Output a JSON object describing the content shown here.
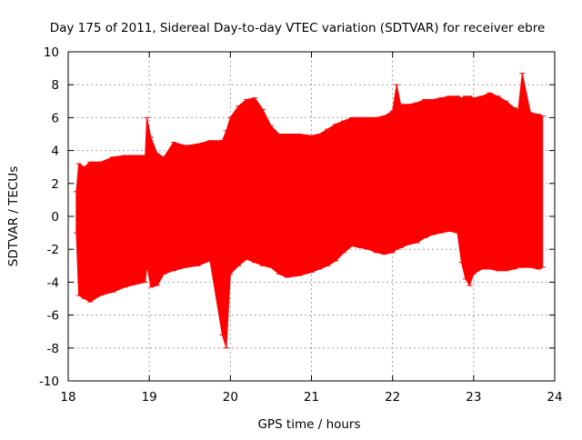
{
  "chart_data": {
    "type": "area",
    "title": "Day 175 of 2011, Sidereal Day-to-day VTEC variation (SDTVAR) for receiver ebre",
    "xlabel": "GPS time / hours",
    "ylabel": "SDTVAR / TECUs",
    "xlim": [
      18,
      24
    ],
    "ylim": [
      -10,
      10
    ],
    "xticks": [
      18,
      19,
      20,
      21,
      22,
      23,
      24
    ],
    "yticks": [
      -10,
      -8,
      -6,
      -4,
      -2,
      0,
      2,
      4,
      6,
      8,
      10
    ],
    "grid": true,
    "legend": "none",
    "series": [
      {
        "color": "#ff0000",
        "x": [
          18.1,
          18.13,
          18.2,
          18.27,
          18.4,
          18.55,
          18.7,
          18.95,
          18.97,
          19.02,
          19.1,
          19.18,
          19.3,
          19.45,
          19.6,
          19.75,
          19.9,
          19.95,
          20.0,
          20.1,
          20.2,
          20.3,
          20.4,
          20.5,
          20.6,
          20.7,
          20.85,
          21.0,
          21.1,
          21.2,
          21.3,
          21.4,
          21.5,
          21.6,
          21.7,
          21.8,
          21.9,
          22.0,
          22.05,
          22.1,
          22.2,
          22.3,
          22.4,
          22.5,
          22.6,
          22.7,
          22.8,
          22.85,
          22.9,
          22.95,
          23.0,
          23.1,
          23.2,
          23.3,
          23.4,
          23.5,
          23.55,
          23.6,
          23.7,
          23.8,
          23.85
        ],
        "upper": [
          1.5,
          3.2,
          3.0,
          3.3,
          3.3,
          3.6,
          3.7,
          3.7,
          6.0,
          4.8,
          3.8,
          3.6,
          4.5,
          4.3,
          4.4,
          4.6,
          4.6,
          5.2,
          6.0,
          6.7,
          7.1,
          7.2,
          6.5,
          5.5,
          5.0,
          5.0,
          5.0,
          4.9,
          5.0,
          5.3,
          5.6,
          5.8,
          6.0,
          6.0,
          6.0,
          6.0,
          6.1,
          6.4,
          8.0,
          6.8,
          6.8,
          6.9,
          7.1,
          7.1,
          7.2,
          7.3,
          7.3,
          7.2,
          7.3,
          7.3,
          7.2,
          7.3,
          7.5,
          7.3,
          7.0,
          6.6,
          6.5,
          8.7,
          6.3,
          6.2,
          6.1
        ],
        "lower": [
          -1.0,
          -4.8,
          -5.0,
          -5.2,
          -4.8,
          -4.6,
          -4.3,
          -4.0,
          -3.0,
          -4.3,
          -4.2,
          -3.5,
          -3.3,
          -3.1,
          -3.0,
          -2.7,
          -7.2,
          -8.0,
          -3.5,
          -3.0,
          -2.6,
          -2.8,
          -3.0,
          -3.1,
          -3.5,
          -3.7,
          -3.6,
          -3.4,
          -3.2,
          -3.0,
          -2.7,
          -2.2,
          -1.8,
          -1.9,
          -2.0,
          -2.2,
          -2.3,
          -2.2,
          -2.0,
          -1.9,
          -1.7,
          -1.6,
          -1.3,
          -1.1,
          -1.0,
          -0.9,
          -1.0,
          -2.8,
          -3.8,
          -4.2,
          -3.5,
          -3.2,
          -3.2,
          -3.3,
          -3.3,
          -3.2,
          -3.1,
          -3.1,
          -3.1,
          -3.2,
          -3.1
        ]
      }
    ]
  }
}
